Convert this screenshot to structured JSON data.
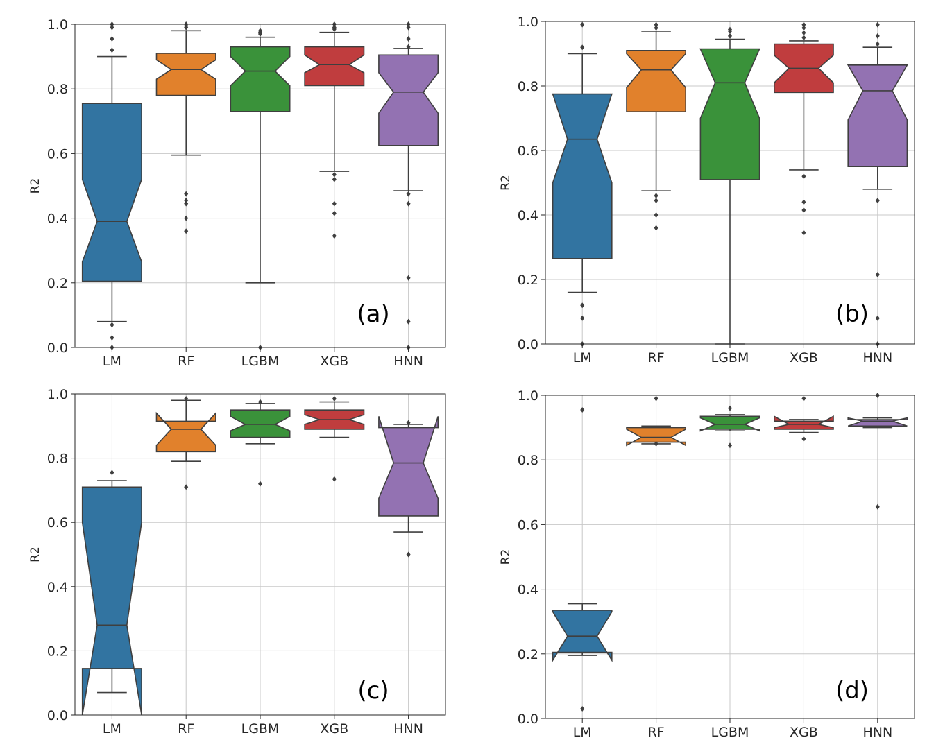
{
  "colors": {
    "LM": "#3274a1",
    "RF": "#e1812c",
    "LGBM": "#3a923a",
    "XGB": "#c03d3e",
    "HNN": "#9372b2",
    "edge": "#3f3f3f",
    "grid": "#c8c8c8",
    "flier": "#3f3f3f"
  },
  "chart_data": [
    {
      "type": "boxplot",
      "panel_label": "(a)",
      "ylabel": "R2",
      "ylim": [
        0,
        1
      ],
      "yticks": [
        "0.0",
        "0.2",
        "0.4",
        "0.6",
        "0.8",
        "1.0"
      ],
      "categories": [
        "LM",
        "RF",
        "LGBM",
        "XGB",
        "HNN"
      ],
      "grid": true,
      "notched": true,
      "boxes": [
        {
          "name": "LM",
          "q1": 0.205,
          "median": 0.39,
          "q3": 0.755,
          "notch_low": 0.265,
          "notch_high": 0.52,
          "whisker_low": 0.08,
          "whisker_high": 0.9,
          "fliers": [
            0.0,
            0.03,
            0.07,
            0.92,
            0.955,
            0.99,
            1.0
          ]
        },
        {
          "name": "RF",
          "q1": 0.78,
          "median": 0.86,
          "q3": 0.91,
          "notch_low": 0.83,
          "notch_high": 0.89,
          "whisker_low": 0.595,
          "whisker_high": 0.98,
          "fliers": [
            0.36,
            0.4,
            0.445,
            0.455,
            0.475,
            0.99,
            0.995,
            1.0
          ]
        },
        {
          "name": "LGBM",
          "q1": 0.73,
          "median": 0.855,
          "q3": 0.93,
          "notch_low": 0.81,
          "notch_high": 0.9,
          "whisker_low": 0.2,
          "whisker_high": 0.96,
          "fliers": [
            0.0,
            0.97,
            0.975,
            0.98
          ]
        },
        {
          "name": "XGB",
          "q1": 0.81,
          "median": 0.875,
          "q3": 0.93,
          "notch_low": 0.85,
          "notch_high": 0.905,
          "whisker_low": 0.545,
          "whisker_high": 0.975,
          "fliers": [
            0.345,
            0.415,
            0.445,
            0.52,
            0.535,
            0.985,
            0.99,
            1.0
          ]
        },
        {
          "name": "HNN",
          "q1": 0.625,
          "median": 0.79,
          "q3": 0.905,
          "notch_low": 0.725,
          "notch_high": 0.85,
          "whisker_low": 0.485,
          "whisker_high": 0.925,
          "fliers": [
            0.0,
            0.08,
            0.215,
            0.445,
            0.475,
            0.93,
            0.955,
            0.99,
            1.0
          ]
        }
      ]
    },
    {
      "type": "boxplot",
      "panel_label": "(b)",
      "ylabel": "R2",
      "ylim": [
        0,
        1
      ],
      "yticks": [
        "0.0",
        "0.2",
        "0.4",
        "0.6",
        "0.8",
        "1.0"
      ],
      "categories": [
        "LM",
        "RF",
        "LGBM",
        "XGB",
        "HNN"
      ],
      "grid": true,
      "notched": true,
      "boxes": [
        {
          "name": "LM",
          "q1": 0.265,
          "median": 0.635,
          "q3": 0.775,
          "notch_low": 0.5,
          "notch_high": 0.775,
          "whisker_low": 0.16,
          "whisker_high": 0.9,
          "fliers": [
            0.0,
            0.08,
            0.12,
            0.92,
            0.99
          ]
        },
        {
          "name": "RF",
          "q1": 0.72,
          "median": 0.85,
          "q3": 0.91,
          "notch_low": 0.795,
          "notch_high": 0.9,
          "whisker_low": 0.475,
          "whisker_high": 0.97,
          "fliers": [
            0.36,
            0.4,
            0.445,
            0.46,
            0.98,
            0.99
          ]
        },
        {
          "name": "LGBM",
          "q1": 0.51,
          "median": 0.81,
          "q3": 0.915,
          "notch_low": 0.7,
          "notch_high": 0.915,
          "whisker_low": 0.0,
          "whisker_high": 0.945,
          "fliers": [
            0.955,
            0.97,
            0.975
          ]
        },
        {
          "name": "XGB",
          "q1": 0.78,
          "median": 0.855,
          "q3": 0.93,
          "notch_low": 0.81,
          "notch_high": 0.895,
          "whisker_low": 0.54,
          "whisker_high": 0.94,
          "fliers": [
            0.345,
            0.415,
            0.44,
            0.52,
            0.95,
            0.965,
            0.98,
            0.99
          ]
        },
        {
          "name": "HNN",
          "q1": 0.55,
          "median": 0.785,
          "q3": 0.865,
          "notch_low": 0.695,
          "notch_high": 0.865,
          "whisker_low": 0.48,
          "whisker_high": 0.92,
          "fliers": [
            0.0,
            0.08,
            0.215,
            0.445,
            0.93,
            0.955,
            0.99
          ]
        }
      ]
    },
    {
      "type": "boxplot",
      "panel_label": "(c)",
      "ylabel": "R2",
      "ylim": [
        0,
        1
      ],
      "yticks": [
        "0.0",
        "0.2",
        "0.4",
        "0.6",
        "0.8",
        "1.0"
      ],
      "categories": [
        "LM",
        "RF",
        "LGBM",
        "XGB",
        "HNN"
      ],
      "grid": true,
      "notched": true,
      "boxes": [
        {
          "name": "LM",
          "q1": 0.145,
          "median": 0.28,
          "q3": 0.71,
          "notch_low": -0.04,
          "notch_high": 0.6,
          "whisker_low": 0.07,
          "whisker_high": 0.73,
          "fliers": [
            0.755
          ]
        },
        {
          "name": "RF",
          "q1": 0.82,
          "median": 0.89,
          "q3": 0.915,
          "notch_low": 0.84,
          "notch_high": 0.94,
          "whisker_low": 0.79,
          "whisker_high": 0.98,
          "fliers": [
            0.71,
            0.985
          ]
        },
        {
          "name": "LGBM",
          "q1": 0.865,
          "median": 0.905,
          "q3": 0.95,
          "notch_low": 0.885,
          "notch_high": 0.93,
          "whisker_low": 0.845,
          "whisker_high": 0.97,
          "fliers": [
            0.72,
            0.975
          ]
        },
        {
          "name": "XGB",
          "q1": 0.89,
          "median": 0.92,
          "q3": 0.95,
          "notch_low": 0.905,
          "notch_high": 0.935,
          "whisker_low": 0.865,
          "whisker_high": 0.975,
          "fliers": [
            0.735,
            0.985
          ]
        },
        {
          "name": "HNN",
          "q1": 0.62,
          "median": 0.785,
          "q3": 0.895,
          "notch_low": 0.675,
          "notch_high": 0.93,
          "whisker_low": 0.57,
          "whisker_high": 0.905,
          "fliers": [
            0.5,
            0.91
          ]
        }
      ]
    },
    {
      "type": "boxplot",
      "panel_label": "(d)",
      "ylabel": "R2",
      "ylim": [
        0,
        1
      ],
      "yticks": [
        "0.0",
        "0.2",
        "0.4",
        "0.6",
        "0.8",
        "1.0"
      ],
      "categories": [
        "LM",
        "RF",
        "LGBM",
        "XGB",
        "HNN"
      ],
      "grid": true,
      "notched": true,
      "boxes": [
        {
          "name": "LM",
          "q1": 0.205,
          "median": 0.255,
          "q3": 0.335,
          "notch_low": 0.18,
          "notch_high": 0.33,
          "whisker_low": 0.195,
          "whisker_high": 0.355,
          "fliers": [
            0.03,
            0.955
          ]
        },
        {
          "name": "RF",
          "q1": 0.855,
          "median": 0.87,
          "q3": 0.9,
          "notch_low": 0.845,
          "notch_high": 0.895,
          "whisker_low": 0.85,
          "whisker_high": 0.905,
          "fliers": [
            0.85,
            0.99
          ]
        },
        {
          "name": "LGBM",
          "q1": 0.895,
          "median": 0.91,
          "q3": 0.935,
          "notch_low": 0.89,
          "notch_high": 0.93,
          "whisker_low": 0.89,
          "whisker_high": 0.94,
          "fliers": [
            0.845,
            0.96
          ]
        },
        {
          "name": "XGB",
          "q1": 0.895,
          "median": 0.91,
          "q3": 0.92,
          "notch_low": 0.9,
          "notch_high": 0.935,
          "whisker_low": 0.885,
          "whisker_high": 0.925,
          "fliers": [
            0.865,
            0.99
          ]
        },
        {
          "name": "HNN",
          "q1": 0.905,
          "median": 0.92,
          "q3": 0.925,
          "notch_low": 0.905,
          "notch_high": 0.93,
          "whisker_low": 0.9,
          "whisker_high": 0.93,
          "fliers": [
            0.655,
            1.0
          ]
        }
      ]
    }
  ]
}
